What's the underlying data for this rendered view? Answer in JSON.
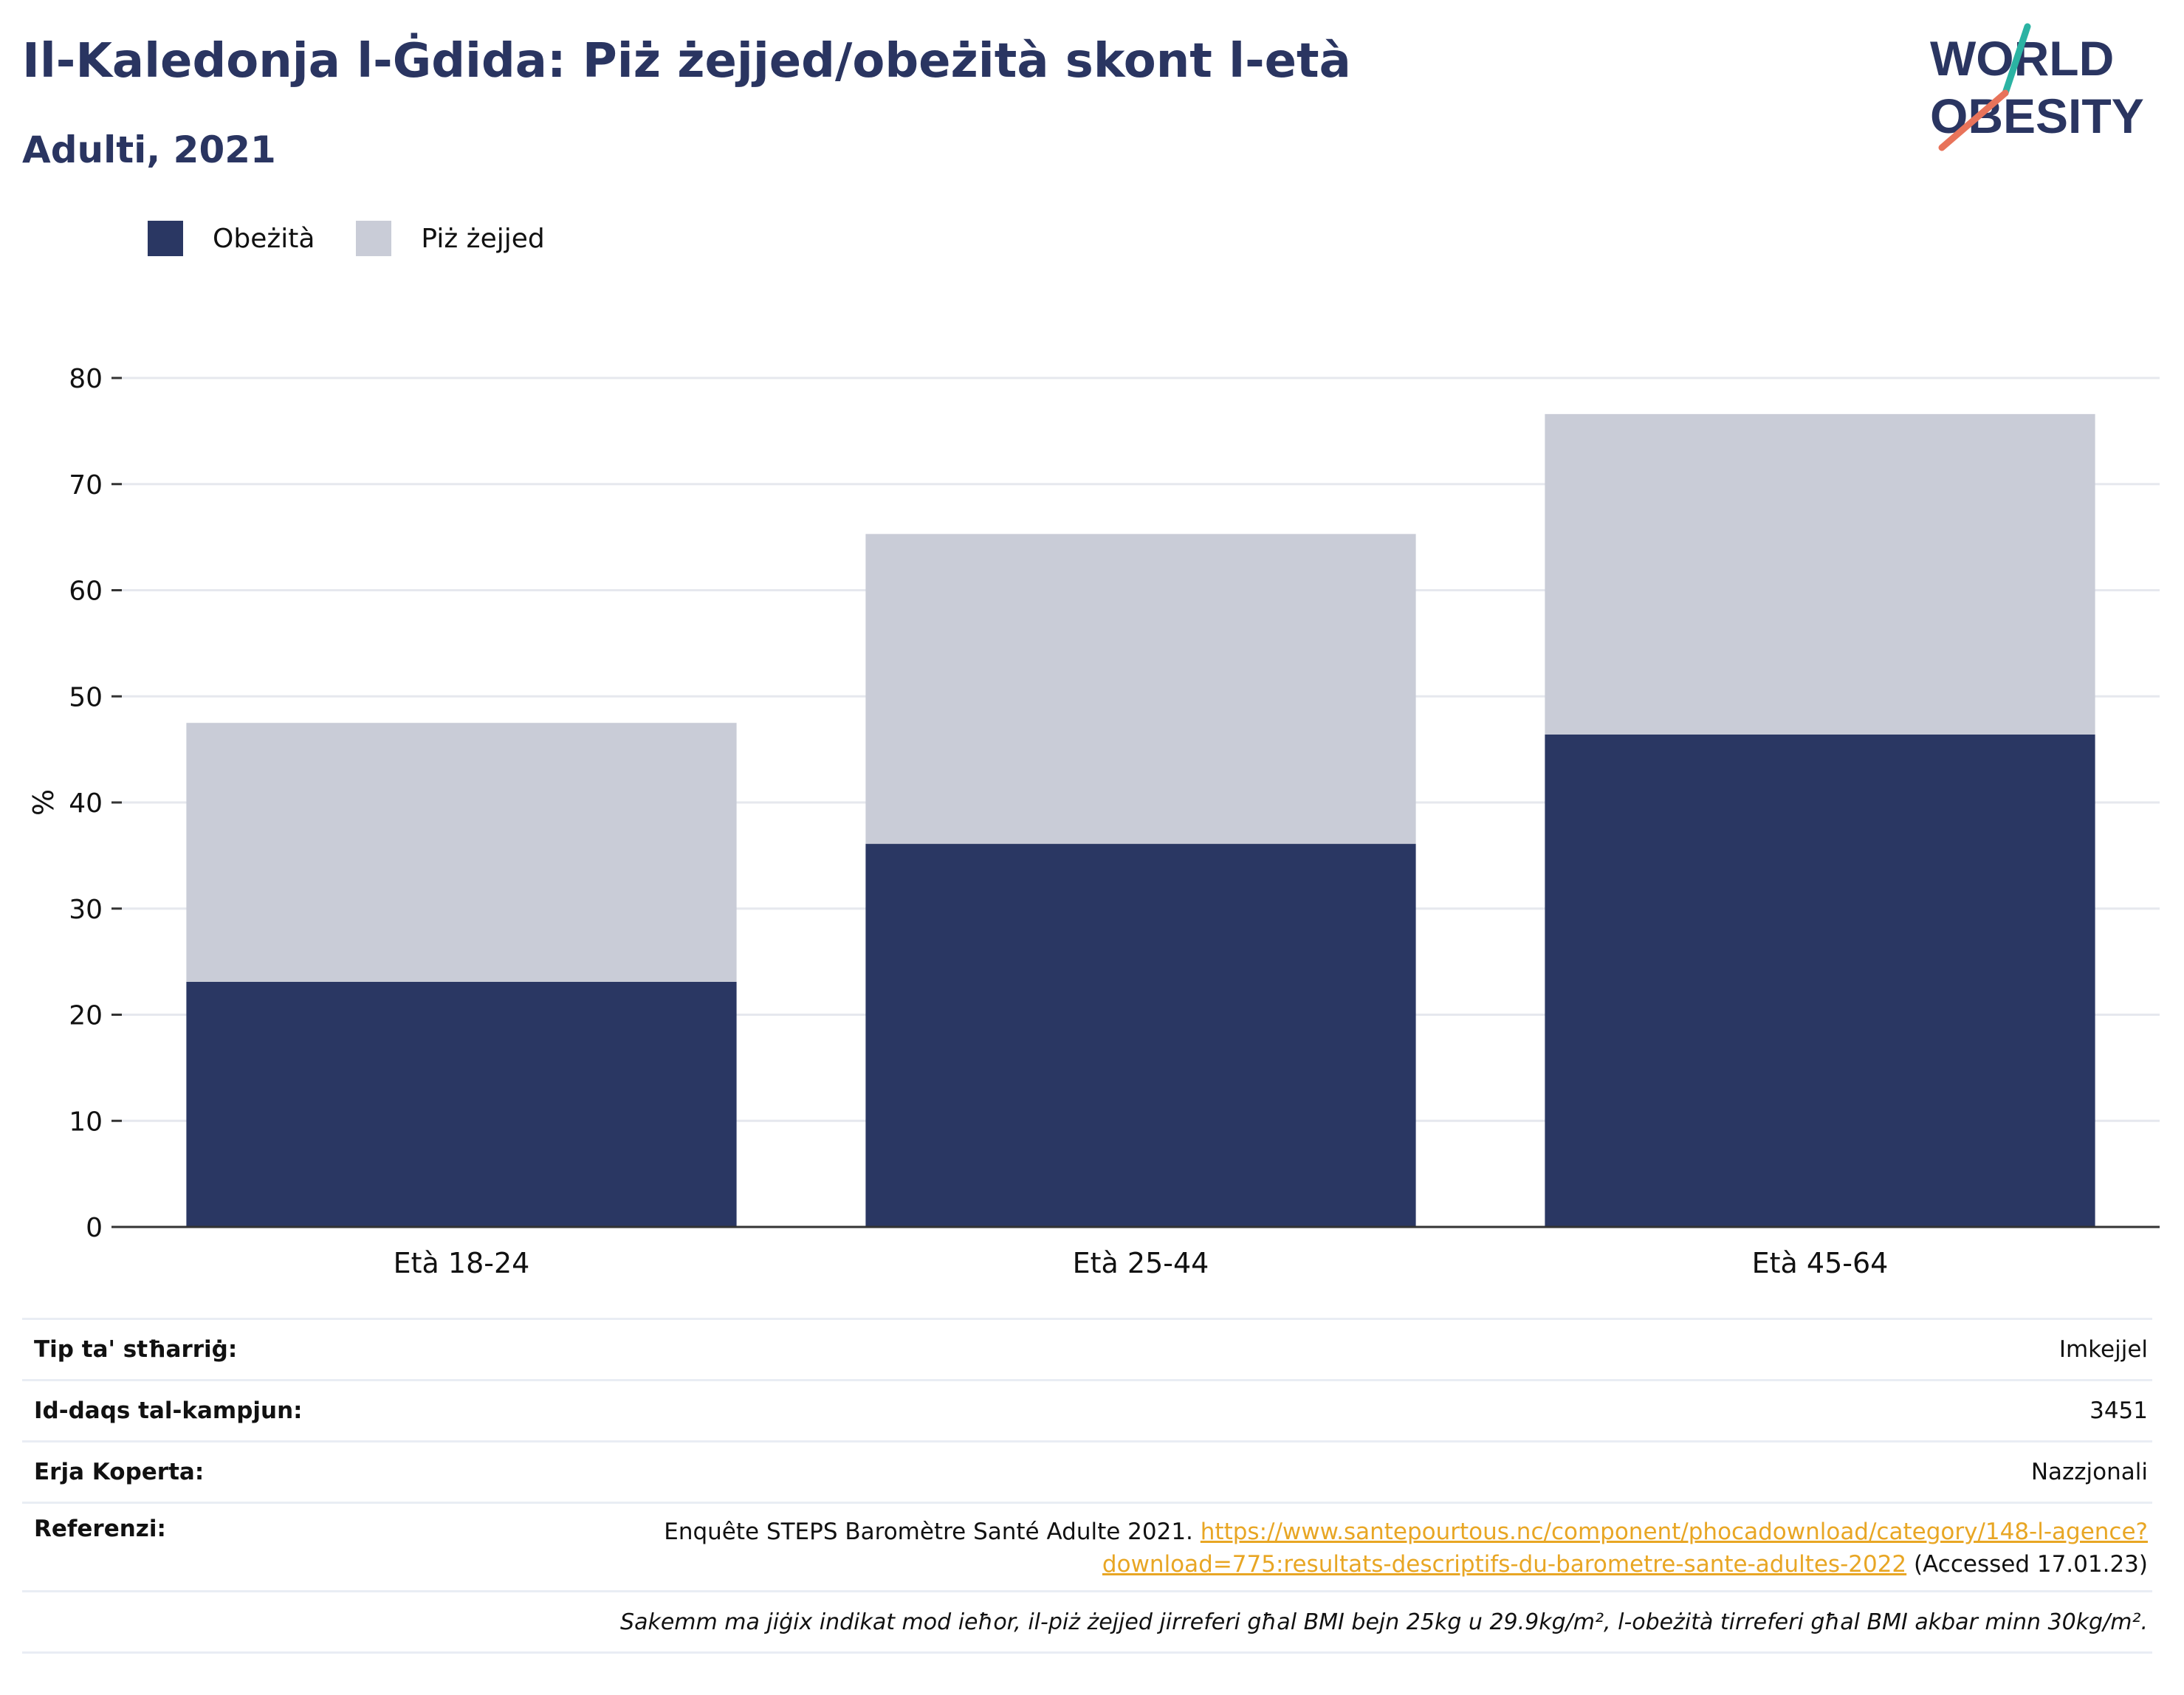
{
  "header": {
    "title": "Il-Kaledonja l-Ġdida: Piż żejjed/obeżità skont l-età",
    "subtitle": "Adulti, 2021"
  },
  "logo": {
    "line1": "WORLD",
    "line2": "OBESITY"
  },
  "colors": {
    "obesity": "#2a3763",
    "overweight": "#c9ccd7",
    "title": "#2a3561",
    "link": "#e8a624",
    "logo_teal": "#2bb3a3",
    "logo_coral": "#e8735a"
  },
  "legend": [
    {
      "label": "Obeżità",
      "color": "#2a3763"
    },
    {
      "label": "Piż żejjed",
      "color": "#c9ccd7"
    }
  ],
  "chart_data": {
    "type": "bar",
    "stacked": true,
    "categories": [
      "Età 18-24",
      "Età 25-44",
      "Età 45-64"
    ],
    "series": [
      {
        "name": "Obeżità",
        "values": [
          23.1,
          36.1,
          46.4
        ]
      },
      {
        "name": "Piż żejjed",
        "values": [
          24.4,
          29.2,
          30.2
        ]
      }
    ],
    "ylabel": "%",
    "ylim": [
      0,
      80
    ],
    "yticks": [
      0,
      10,
      20,
      30,
      40,
      50,
      60,
      70,
      80
    ],
    "grid": true,
    "legend_position": "top-left"
  },
  "info": {
    "survey_type_label": "Tip ta' stħarriġ:",
    "survey_type_value": "Imkejjel",
    "sample_size_label": "Id-daqs tal-kampjun:",
    "sample_size_value": "3451",
    "coverage_label": "Erja Koperta:",
    "coverage_value": "Nazzjonali",
    "references_label": "Referenzi:",
    "references_text": "Enquête STEPS Baromètre Santé Adulte 2021.",
    "references_link": "https://www.santepourtous.nc/component/phocadownload/category/148-l-agence?download=775:resultats-descriptifs-du-barometre-sante-adultes-2022",
    "references_accessed": "(Accessed 17.01.23)",
    "note": "Sakemm ma jiġix indikat mod ieħor, il-piż żejjed jirreferi għal BMI bejn 25kg u 29.9kg/m², l-obeżità tirreferi għal BMI akbar minn 30kg/m²."
  }
}
